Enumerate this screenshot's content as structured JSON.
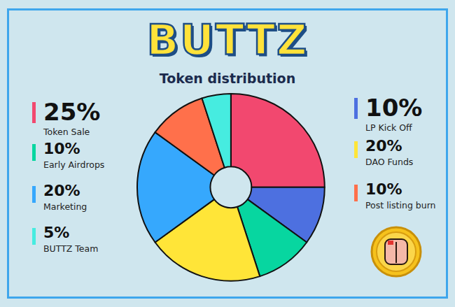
{
  "chart_data": {
    "type": "pie",
    "title": "BUTTZ",
    "subtitle": "Token distribution",
    "categories": [
      "Token Sale",
      "LP Kick Off",
      "Early Airdrops",
      "DAO Funds",
      "Marketing",
      "Post listing burn",
      "BUTTZ Team"
    ],
    "values": [
      25,
      10,
      10,
      20,
      20,
      10,
      5
    ],
    "value_labels": [
      "25%",
      "10%",
      "10%",
      "20%",
      "20%",
      "10%",
      "5%"
    ],
    "colors": [
      "#f2486f",
      "#4d70e0",
      "#07d6a0",
      "#ffe538",
      "#36a8fd",
      "#ff704b",
      "#46ece0"
    ]
  }
}
